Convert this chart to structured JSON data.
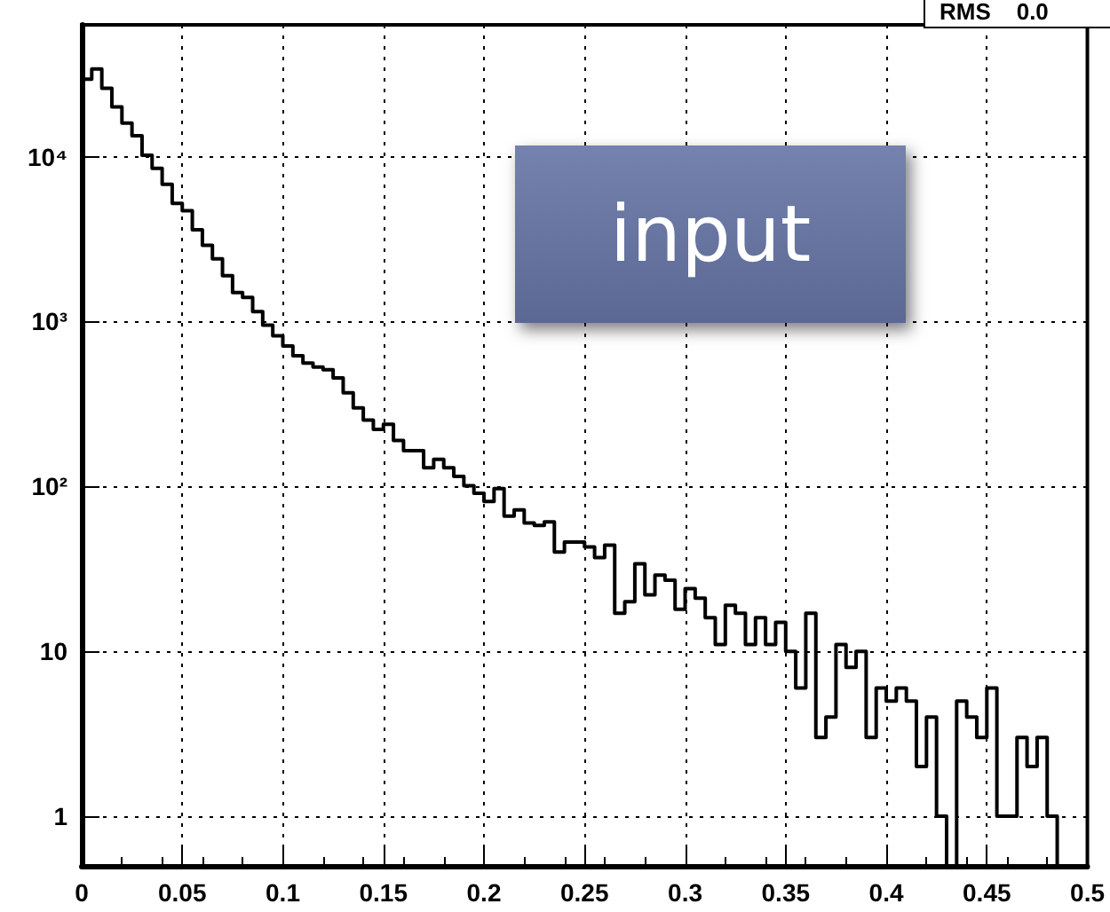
{
  "chart_data": {
    "type": "histogram",
    "bins": [
      0,
      0.005,
      0.01,
      0.015,
      0.02,
      0.025,
      0.03,
      0.035,
      0.04,
      0.045,
      0.05,
      0.055,
      0.06,
      0.065,
      0.07,
      0.075,
      0.08,
      0.085,
      0.09,
      0.095,
      0.1,
      0.105,
      0.11,
      0.115,
      0.12,
      0.125,
      0.13,
      0.135,
      0.14,
      0.145,
      0.15,
      0.155,
      0.16,
      0.165,
      0.17,
      0.175,
      0.18,
      0.185,
      0.19,
      0.195,
      0.2,
      0.205,
      0.21,
      0.215,
      0.22,
      0.225,
      0.23,
      0.235,
      0.24,
      0.245,
      0.25,
      0.255,
      0.26,
      0.265,
      0.27,
      0.275,
      0.28,
      0.285,
      0.29,
      0.295,
      0.3,
      0.305,
      0.31,
      0.315,
      0.32,
      0.325,
      0.33,
      0.335,
      0.34,
      0.345,
      0.35,
      0.355,
      0.36,
      0.365,
      0.37,
      0.375,
      0.38,
      0.385,
      0.39,
      0.395,
      0.4,
      0.405,
      0.41,
      0.415,
      0.42,
      0.425,
      0.43,
      0.435,
      0.44,
      0.445,
      0.45,
      0.455,
      0.46,
      0.465,
      0.47,
      0.475,
      0.48,
      0.485,
      0.49,
      0.495,
      0.5
    ],
    "values": [
      29500,
      34000,
      26000,
      20000,
      16000,
      13400,
      10200,
      8500,
      6800,
      5200,
      4700,
      3600,
      2900,
      2400,
      1900,
      1500,
      1400,
      1150,
      950,
      820,
      710,
      620,
      560,
      530,
      510,
      455,
      370,
      300,
      253,
      222,
      238,
      190,
      165,
      165,
      130,
      146,
      130,
      115,
      101,
      91,
      81,
      97,
      66,
      72,
      60,
      58,
      61,
      40,
      46,
      46,
      43,
      37,
      44,
      17,
      20,
      34,
      22,
      29,
      27,
      18,
      24,
      21,
      16,
      11,
      19,
      17,
      11,
      16,
      11,
      15,
      10,
      6,
      17,
      3,
      4,
      11,
      8,
      10,
      3,
      6,
      5,
      6,
      5,
      2,
      4,
      1,
      null,
      5,
      4,
      3,
      6,
      1,
      1,
      3,
      2,
      3,
      1,
      null,
      null,
      null
    ],
    "color": "#000000",
    "log": "y",
    "xlim": [
      0,
      0.5
    ],
    "xticks": [
      0,
      0.05,
      0.1,
      0.15,
      0.2,
      0.25,
      0.3,
      0.35,
      0.4,
      0.45,
      0.5
    ],
    "ylim": [
      0.5,
      63000
    ],
    "yticks": [
      1,
      10,
      {
        "value": 100,
        "label": "10²"
      },
      {
        "value": 1000,
        "label": "10³"
      },
      {
        "value": 10000,
        "label": "10⁴"
      }
    ],
    "grid": true,
    "annotations": [
      "input",
      "RMS    0.0"
    ]
  }
}
